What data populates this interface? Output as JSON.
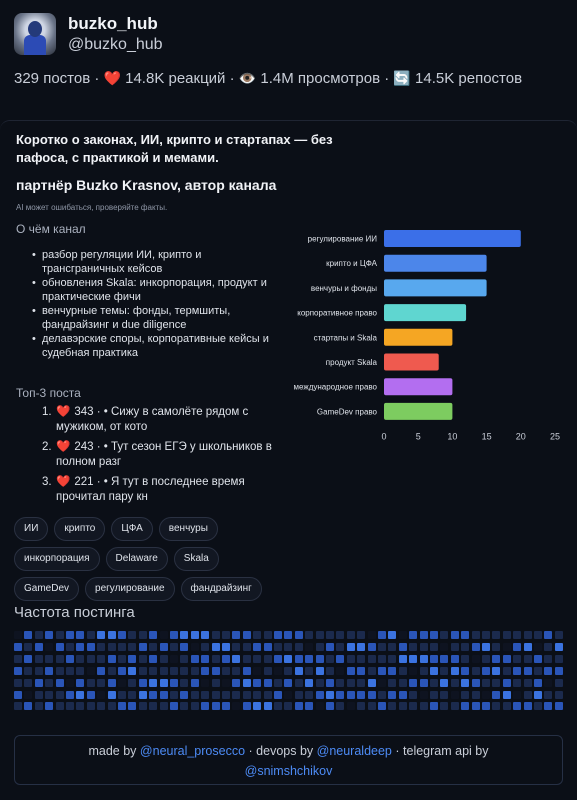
{
  "profile": {
    "title": "buzko_hub",
    "handle": "@buzko_hub",
    "avatar_icon": "avatar-photo-icon"
  },
  "stats": {
    "posts": "329 постов",
    "reactions": "14.8K реакций",
    "views": "1.4M просмотров",
    "reposts": "14.5K репостов",
    "sep": "·"
  },
  "tagline": "Коротко о законах, ИИ, крипто и стартапах — без пафоса, с практикой и мемами.",
  "partner": "партнёр Buzko Krasnov, автор канала",
  "ai_note": "AI может ошибаться, проверяйте факты.",
  "about": {
    "title": "О чём канал",
    "items": [
      "разбор регуляции ИИ, крипто и трансграничных кейсов",
      "обновления Skala: инкорпорация, продукт и практические фичи",
      "венчурные темы: фонды, термшиты, фандрайзинг и due diligence",
      "делавэрские споры, корпоративные кейсы и судебная практика"
    ]
  },
  "top_posts": {
    "title": "Топ-3 поста",
    "items": [
      {
        "num": "1.",
        "count": "343",
        "text": "• Сижу в самолёте рядом с мужиком, от кото"
      },
      {
        "num": "2.",
        "count": "243",
        "text": "• Тут сезон ЕГЭ у школьников в полном разг"
      },
      {
        "num": "3.",
        "count": "221",
        "text": "• Я тут в последнее время прочитал пару кн"
      }
    ]
  },
  "tags": [
    "ИИ",
    "крипто",
    "ЦФА",
    "венчуры",
    "инкорпорация",
    "Delaware",
    "Skala",
    "GameDev",
    "регулирование",
    "фандрайзинг"
  ],
  "frequency": {
    "title": "Частота постинга",
    "levels": [
      0,
      2,
      1,
      2,
      1,
      2,
      1,
      2,
      1,
      2,
      1,
      1,
      0,
      2,
      1,
      2,
      1,
      1,
      2,
      1,
      1,
      2,
      0,
      1,
      2,
      1,
      1,
      2,
      1,
      2,
      1,
      1,
      2,
      1,
      1,
      2,
      1,
      2,
      1,
      0,
      2,
      1,
      2,
      2,
      1,
      1,
      2,
      3,
      1,
      1,
      2,
      1,
      0,
      1,
      2,
      1,
      3,
      1,
      1,
      2,
      1,
      0,
      1,
      3,
      1,
      2,
      1,
      2,
      3,
      1,
      2,
      1,
      1,
      2,
      0,
      1,
      2,
      1,
      1,
      2,
      3,
      1,
      1,
      2,
      1,
      2,
      1,
      1,
      2,
      3,
      1,
      2,
      1,
      2,
      1,
      3,
      2,
      1,
      0,
      2,
      1,
      1,
      3,
      2,
      1,
      2,
      1,
      0,
      1,
      2,
      1,
      2,
      3,
      2,
      1,
      1,
      1,
      2,
      1,
      3,
      0,
      2,
      1,
      2,
      1,
      1,
      3,
      1,
      2,
      2,
      0,
      1,
      2,
      1,
      3,
      1,
      2,
      1,
      1,
      2,
      1,
      3,
      2,
      1,
      0,
      1,
      2,
      2,
      1,
      3,
      1,
      2,
      1,
      0,
      2,
      1,
      1,
      2,
      3,
      1,
      2,
      1,
      2,
      1,
      0,
      2,
      1,
      3,
      1,
      2,
      1,
      1,
      2,
      1,
      3,
      2,
      1,
      2,
      0,
      1,
      2,
      1,
      2,
      1,
      3,
      1,
      2,
      0,
      1,
      2,
      1,
      2,
      3,
      1,
      1,
      2,
      1,
      0,
      2,
      1,
      3,
      1,
      2,
      1,
      1,
      2,
      3,
      1,
      2,
      0,
      1,
      2,
      1,
      1,
      2,
      3,
      2,
      1,
      1,
      2,
      0,
      1,
      2,
      1,
      1,
      3,
      1,
      2,
      1,
      2,
      0,
      1,
      3,
      1,
      2,
      1,
      2,
      1,
      0,
      2,
      1,
      1,
      3,
      2,
      1,
      2,
      1,
      1,
      2,
      0,
      1,
      2,
      3,
      1,
      1,
      2,
      1,
      2,
      1,
      0,
      2,
      3,
      1,
      1,
      2,
      1,
      2,
      1,
      3,
      0,
      2,
      1,
      1,
      2,
      1,
      3,
      1,
      2,
      0,
      1,
      2,
      1,
      2,
      3,
      1,
      1,
      2,
      1,
      0,
      2,
      1,
      3,
      1,
      1,
      2,
      1,
      2,
      3,
      1,
      0,
      1,
      2,
      1,
      1,
      2,
      3,
      1,
      2,
      1,
      2,
      0,
      1,
      2,
      1,
      2,
      1,
      3,
      1,
      2,
      1,
      0,
      2,
      1,
      1,
      2,
      3,
      1,
      2,
      1,
      1,
      0,
      2,
      1,
      2,
      3,
      1,
      1,
      2,
      1,
      2,
      1,
      0,
      2,
      1,
      3,
      1,
      2,
      1,
      1,
      2,
      1,
      0,
      2,
      1,
      2,
      3,
      1,
      2,
      1,
      1,
      2,
      0,
      1,
      2,
      1,
      3,
      1,
      2,
      1,
      1,
      2,
      0,
      1,
      3,
      2,
      1,
      1,
      2,
      1,
      2,
      1,
      0,
      2,
      3,
      1,
      1,
      2,
      1,
      2,
      1,
      0,
      2,
      1,
      3,
      1,
      2,
      1,
      2,
      1,
      1,
      0,
      2,
      1,
      2,
      3,
      1,
      2,
      1,
      1,
      0,
      1,
      2,
      1,
      3,
      2,
      1,
      1,
      2,
      1,
      0,
      2,
      1,
      3,
      1,
      2,
      1,
      1,
      2,
      0,
      1,
      2,
      3,
      1,
      2,
      1,
      1,
      2,
      1,
      0,
      2,
      1,
      3,
      1,
      2,
      1,
      1,
      2,
      1,
      0
    ],
    "colors": [
      "#0e1320",
      "#1b2a4d",
      "#2a55b8",
      "#3b73e0"
    ]
  },
  "footer": {
    "made_by": "made by",
    "author": "@neural_prosecco",
    "sep1": "·",
    "devops_label": "devops by",
    "devops": "@neuraldeep",
    "sep2": "·",
    "api_label": "telegram api by",
    "api": "@snimshchikov"
  },
  "chart_data": {
    "type": "bar",
    "orientation": "horizontal",
    "categories": [
      "регулирование ИИ",
      "крипто и ЦФА",
      "венчуры и фонды",
      "корпоративное право",
      "стартапы и Skala",
      "продукт Skala",
      "международное право",
      "GameDev право"
    ],
    "values": [
      20,
      15,
      15,
      12,
      10,
      8,
      10,
      10
    ],
    "colors": [
      "#3b6fe8",
      "#4c86ea",
      "#58a8ee",
      "#5fd6d0",
      "#f5a623",
      "#ef5a4f",
      "#b36ef0",
      "#7dcc60"
    ],
    "xlim": [
      0,
      25
    ],
    "ticks": [
      0,
      5,
      10,
      15,
      20,
      25
    ],
    "title": "",
    "xlabel": "",
    "ylabel": "",
    "grid": false
  }
}
